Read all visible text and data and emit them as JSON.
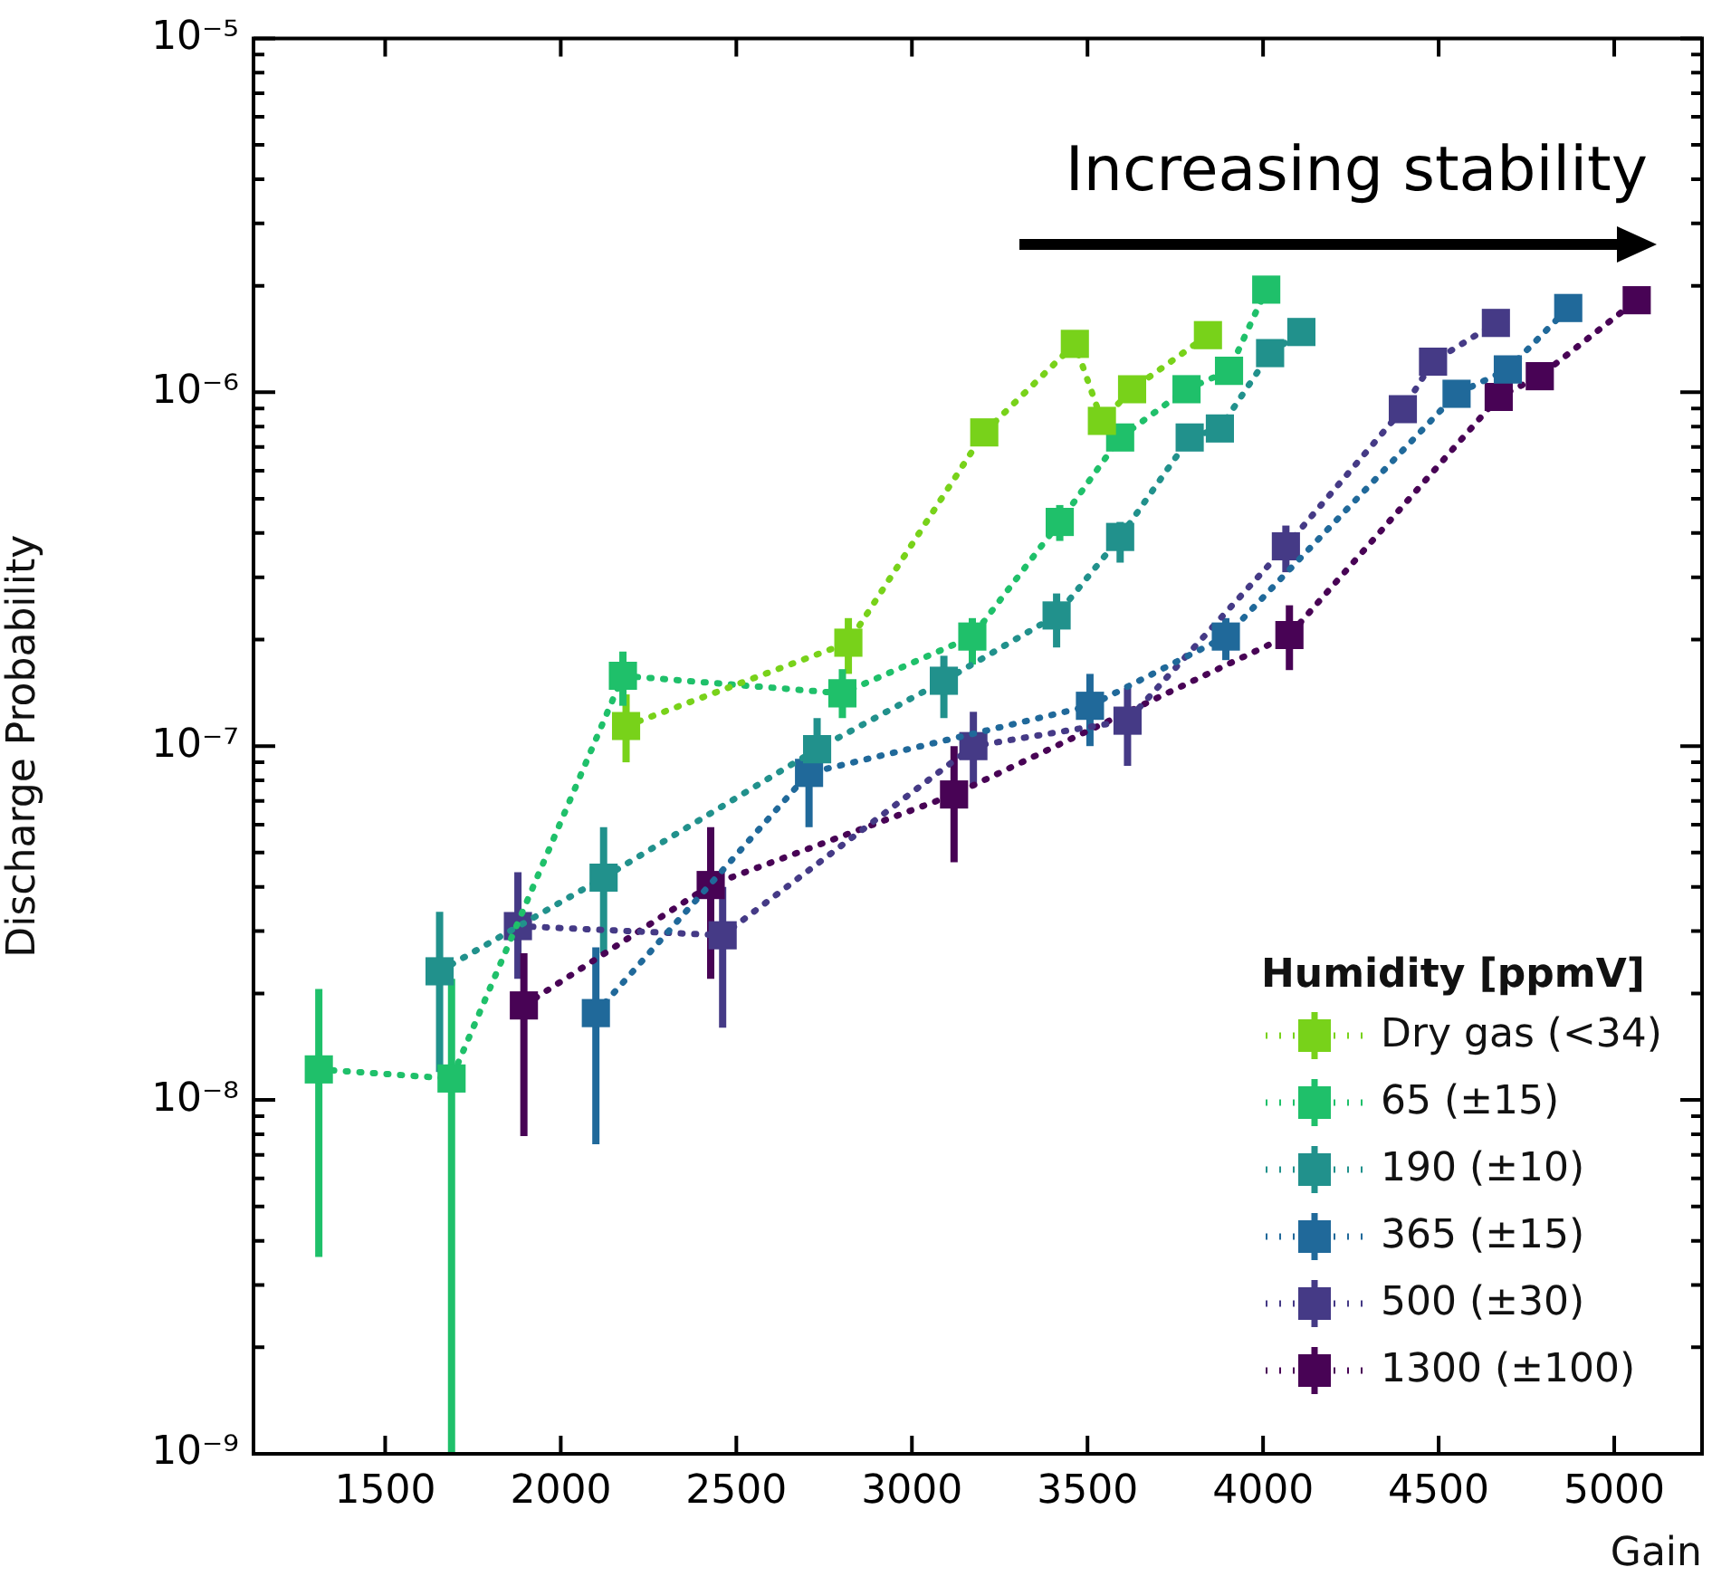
{
  "chart_data": {
    "type": "line",
    "xlabel": "Gain",
    "ylabel": "Discharge Probability",
    "legend_title": "Humidity [ppmV]",
    "annotations": [
      "Increasing stability"
    ],
    "log": "y",
    "marker": "square",
    "line_style": "dotted",
    "legend": "bottom right",
    "xlim": [
      1125,
      5250
    ],
    "xticks": [
      1500,
      2000,
      2500,
      3000,
      3500,
      4000,
      4500,
      5000
    ],
    "ylim": [
      1e-09,
      1e-05
    ],
    "yticks": [
      {
        "value": 1e-09,
        "label": "10⁻⁹"
      },
      {
        "value": 2e-09,
        "label": null
      },
      {
        "value": 3e-09,
        "label": null
      },
      {
        "value": 4e-09,
        "label": null
      },
      {
        "value": 5e-09,
        "label": null
      },
      {
        "value": 6e-09,
        "label": null
      },
      {
        "value": 7e-09,
        "label": null
      },
      {
        "value": 8e-09,
        "label": null
      },
      {
        "value": 9e-09,
        "label": null
      },
      {
        "value": 1e-08,
        "label": "10⁻⁸"
      },
      {
        "value": 2e-08,
        "label": null
      },
      {
        "value": 3e-08,
        "label": null
      },
      {
        "value": 4e-08,
        "label": null
      },
      {
        "value": 5e-08,
        "label": null
      },
      {
        "value": 6e-08,
        "label": null
      },
      {
        "value": 7e-08,
        "label": null
      },
      {
        "value": 8e-08,
        "label": null
      },
      {
        "value": 9e-08,
        "label": null
      },
      {
        "value": 1e-07,
        "label": "10⁻⁷"
      },
      {
        "value": 2e-07,
        "label": null
      },
      {
        "value": 3e-07,
        "label": null
      },
      {
        "value": 4e-07,
        "label": null
      },
      {
        "value": 5e-07,
        "label": null
      },
      {
        "value": 6e-07,
        "label": null
      },
      {
        "value": 7e-07,
        "label": null
      },
      {
        "value": 8e-07,
        "label": null
      },
      {
        "value": 9e-07,
        "label": null
      },
      {
        "value": 1e-06,
        "label": "10⁻⁶"
      },
      {
        "value": 2e-06,
        "label": null
      },
      {
        "value": 3e-06,
        "label": null
      },
      {
        "value": 4e-06,
        "label": null
      },
      {
        "value": 5e-06,
        "label": null
      },
      {
        "value": 6e-06,
        "label": null
      },
      {
        "value": 7e-06,
        "label": null
      },
      {
        "value": 8e-06,
        "label": null
      },
      {
        "value": 9e-06,
        "label": null
      },
      {
        "value": 1e-05,
        "label": "10⁻⁵"
      }
    ],
    "series": [
      {
        "name": "Dry gas (<34)",
        "color": "#78d21a",
        "x": [
          2186,
          2819,
          3206,
          3464,
          3541,
          3627,
          3843
        ],
        "values": [
          1.14e-07,
          1.96e-07,
          7.7e-07,
          1.37e-06,
          8.3e-07,
          1.02e-06,
          1.45e-06
        ],
        "errors": [
          [
            9e-08,
            1.4e-07
          ],
          [
            1.6e-07,
            2.3e-07
          ],
          null,
          null,
          null,
          null,
          null
        ]
      },
      {
        "name": "65 (±15)",
        "color": "#1fc06a",
        "x": [
          1311,
          1689,
          2177,
          2802,
          3172,
          3421,
          3593,
          3782,
          3903,
          4009
        ],
        "values": [
          1.22e-08,
          1.15e-08,
          1.58e-07,
          1.41e-07,
          2.04e-07,
          4.3e-07,
          7.45e-07,
          1.02e-06,
          1.15e-06,
          1.95e-06
        ],
        "errors": [
          [
            3.6e-09,
            2.06e-08
          ],
          [
            1e-09,
            2.2e-08
          ],
          [
            1.3e-07,
            1.85e-07
          ],
          [
            1.2e-07,
            1.65e-07
          ],
          [
            1.7e-07,
            2.3e-07
          ],
          [
            3.8e-07,
            4.8e-07
          ],
          null,
          null,
          null,
          null
        ]
      },
      {
        "name": "190 (±10)",
        "color": "#21918c",
        "x": [
          1655,
          2122,
          2730,
          3091,
          3412,
          3593,
          3791,
          3877,
          4020,
          4109
        ],
        "values": [
          2.31e-08,
          4.25e-08,
          9.8e-08,
          1.53e-07,
          2.34e-07,
          3.9e-07,
          7.45e-07,
          7.9e-07,
          1.29e-06,
          1.48e-06
        ],
        "errors": [
          [
            1.2e-08,
            3.4e-08
          ],
          [
            2.6e-08,
            5.9e-08
          ],
          [
            7.7e-08,
            1.2e-07
          ],
          [
            1.2e-07,
            1.8e-07
          ],
          [
            1.9e-07,
            2.7e-07
          ],
          [
            3.3e-07,
            4.3e-07
          ],
          null,
          null,
          null,
          null
        ]
      },
      {
        "name": "365 (±15)",
        "color": "#20699a",
        "x": [
          2100,
          2707,
          3507,
          3894,
          4551,
          4697,
          4869
        ],
        "values": [
          1.76e-08,
          8.4e-08,
          1.3e-07,
          2.04e-07,
          9.9e-07,
          1.16e-06,
          1.73e-06
        ],
        "errors": [
          [
            7.5e-09,
            2.7e-08
          ],
          [
            5.9e-08,
            8.4e-08
          ],
          [
            1e-07,
            1.6e-07
          ],
          [
            1.75e-07,
            2.3e-07
          ],
          null,
          null,
          null
        ]
      },
      {
        "name": "500 (±30)",
        "color": "#453a86",
        "x": [
          1878,
          2461,
          3175,
          3614,
          4065,
          4398,
          4484,
          4663
        ],
        "values": [
          3.1e-08,
          2.92e-08,
          1e-07,
          1.18e-07,
          3.67e-07,
          8.96e-07,
          1.22e-06,
          1.57e-06
        ],
        "errors": [
          [
            2.2e-08,
            4.4e-08
          ],
          [
            1.6e-08,
            4e-08
          ],
          [
            7.8e-08,
            1.25e-07
          ],
          [
            8.8e-08,
            1.46e-07
          ],
          [
            3.1e-07,
            4.2e-07
          ],
          null,
          null,
          null
        ]
      },
      {
        "name": "1300 (±100)",
        "color": "#480355",
        "x": [
          1895,
          2427,
          3120,
          4075,
          4671,
          4788,
          5064
        ],
        "values": [
          1.85e-08,
          4.05e-08,
          7.3e-08,
          2.06e-07,
          9.7e-07,
          1.11e-06,
          1.82e-06
        ],
        "errors": [
          [
            7.9e-09,
            2.6e-08
          ],
          [
            2.2e-08,
            5.9e-08
          ],
          [
            4.7e-08,
            1e-07
          ],
          [
            1.64e-07,
            2.5e-07
          ],
          null,
          null,
          null
        ]
      }
    ]
  }
}
